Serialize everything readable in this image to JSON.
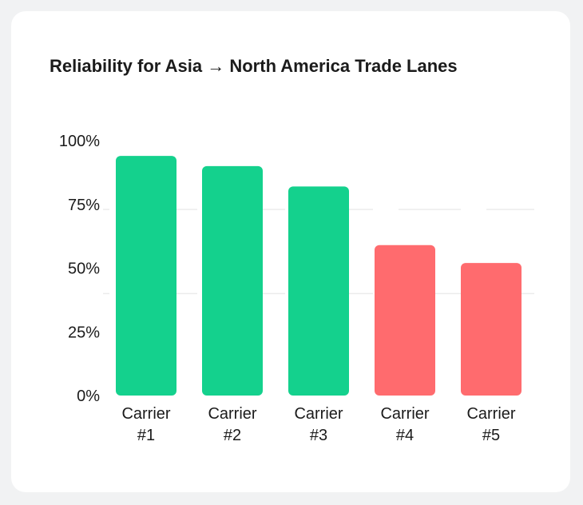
{
  "chart_data": {
    "type": "bar",
    "title": "Reliability for Asia → North America Trade Lanes",
    "categories": [
      [
        "Carrier",
        "#1"
      ],
      [
        "Carrier",
        "#2"
      ],
      [
        "Carrier",
        "#3"
      ],
      [
        "Carrier",
        "#4"
      ],
      [
        "Carrier",
        "#5"
      ]
    ],
    "values": [
      94,
      90,
      82,
      59,
      52
    ],
    "ylim": [
      0,
      100
    ],
    "yticks": [
      "0%",
      "25%",
      "50%",
      "75%",
      "100%"
    ],
    "ytick_values": [
      0,
      25,
      50,
      75,
      100
    ],
    "gridlines": [
      40,
      73
    ],
    "threshold": 75,
    "colors": {
      "above_threshold": "#14d18d",
      "below_threshold": "#ff6b6e",
      "grid": "#ececec"
    },
    "xlabel": "",
    "ylabel": ""
  }
}
